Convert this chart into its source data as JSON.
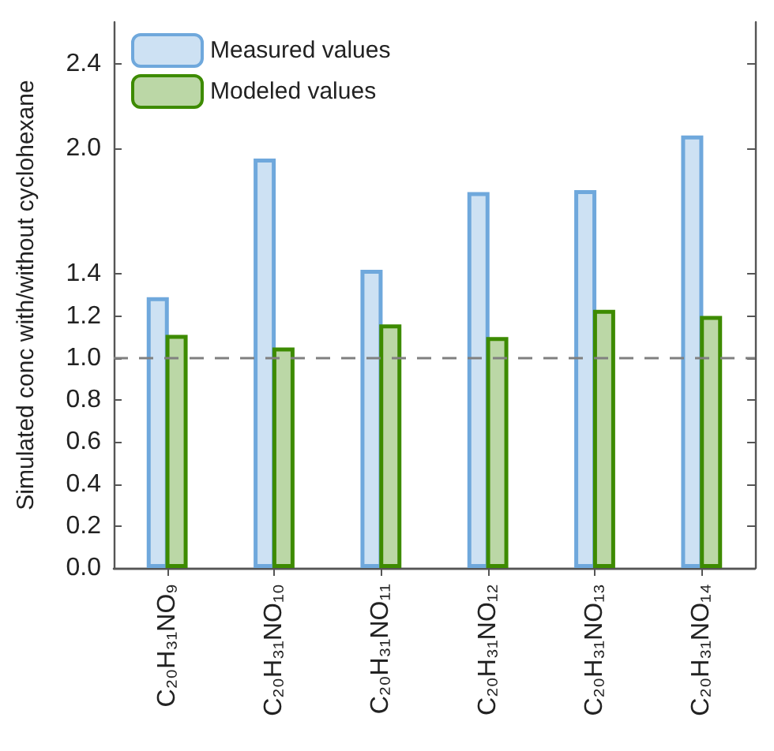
{
  "chart_data": {
    "type": "bar",
    "ylabel": "Simulated conc with/without cyclohexane",
    "categories": [
      "C₂₀H₃₁NO₉",
      "C₂₀H₃₁NO₁₀",
      "C₂₀H₃₁NO₁₁",
      "C₂₀H₃₁NO₁₂",
      "C₂₀H₃₁NO₁₃",
      "C₂₀H₃₁NO₁₄"
    ],
    "series": [
      {
        "name": "Measured values",
        "color": "#6fa8dc",
        "values": [
          1.29,
          1.95,
          1.42,
          1.79,
          1.8,
          2.06
        ]
      },
      {
        "name": "Modeled values",
        "color": "#3d8b00",
        "values": [
          1.11,
          1.05,
          1.16,
          1.1,
          1.23,
          1.2
        ]
      }
    ],
    "ylim": [
      0,
      2.6
    ],
    "yticks": [
      {
        "value": 0,
        "label": "0.0"
      },
      {
        "value": 0.2,
        "label": "0.2"
      },
      {
        "value": 0.4,
        "label": "0.4"
      },
      {
        "value": 0.6,
        "label": "0.6"
      },
      {
        "value": 0.8,
        "label": "0.8"
      },
      {
        "value": 1,
        "label": "1.0"
      },
      {
        "value": 1.2,
        "label": "1.2"
      },
      {
        "value": 1.4,
        "label": "1.4"
      },
      {
        "value": 2,
        "label": "2.0"
      },
      {
        "value": 2.4,
        "label": "2.4"
      }
    ],
    "ref_lines": [
      {
        "axis": "y",
        "value": 1,
        "color": "#808080",
        "line_style": "dashed"
      }
    ],
    "grid": false,
    "legend": "top left"
  }
}
